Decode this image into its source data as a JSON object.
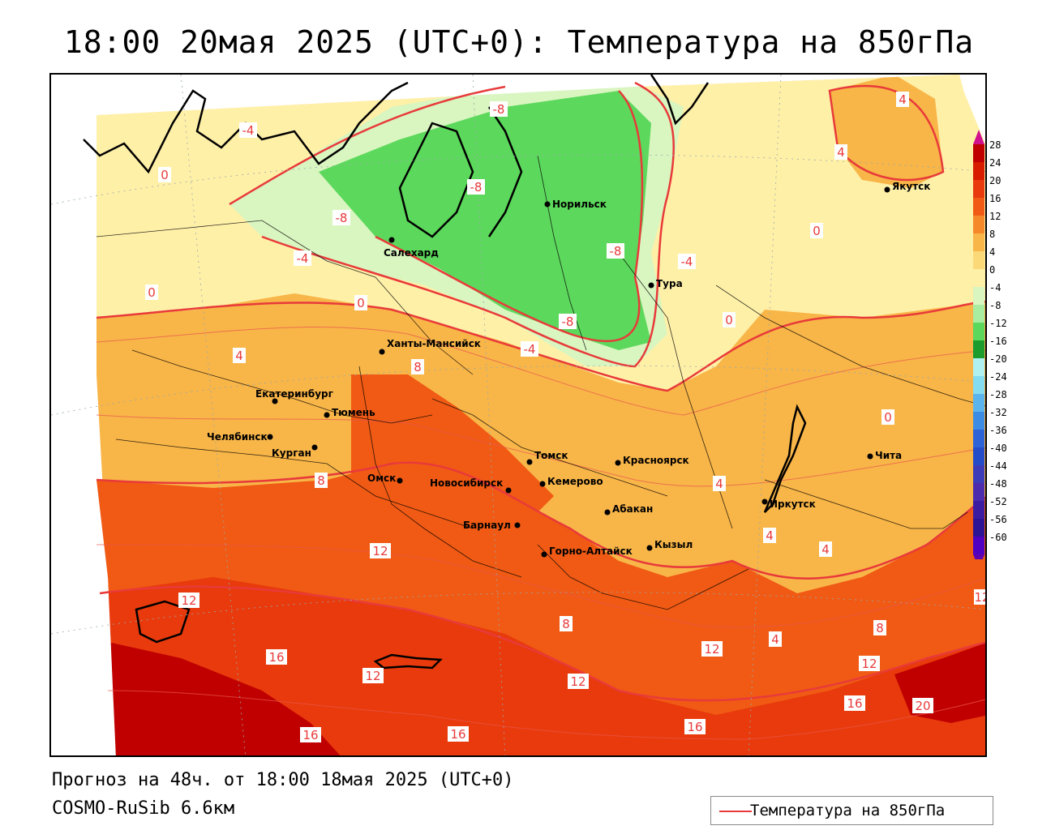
{
  "title": "18:00 20мая 2025 (UTC+0): Температура на 850гПа",
  "footer": {
    "forecast": "Прогноз на 48ч. от 18:00 18мая 2025 (UTC+0)",
    "model": "COSMO-RuSib 6.6км"
  },
  "legend": {
    "label": "Температура на 850гПа",
    "line_color": "#e83a3a"
  },
  "scale": {
    "values": [
      "28",
      "24",
      "20",
      "16",
      "12",
      "8",
      "4",
      "0",
      "-4",
      "-8",
      "-12",
      "-16",
      "-20",
      "-24",
      "-28",
      "-32",
      "-36",
      "-40",
      "-44",
      "-48",
      "-52",
      "-56",
      "-60"
    ],
    "colors": [
      "#c00000",
      "#d81c00",
      "#e83a0c",
      "#f05a14",
      "#f5892a",
      "#f8b548",
      "#fbd978",
      "#fff0a8",
      "#d9f5c0",
      "#a8eda0",
      "#5cd85c",
      "#1c9c2c",
      "#b0f0f0",
      "#84dcf0",
      "#5cb4ec",
      "#3c8ce4",
      "#2c64d8",
      "#244cc8",
      "#3c3cb8",
      "#4c2cac",
      "#3c1ca0",
      "#2c1494",
      "#5000c0"
    ]
  },
  "cities": [
    {
      "name": "Норильск"
    },
    {
      "name": "Якутск"
    },
    {
      "name": "Салехард"
    },
    {
      "name": "Тура"
    },
    {
      "name": "Ханты-Мансийск"
    },
    {
      "name": "Екатеринбург"
    },
    {
      "name": "Тюмень"
    },
    {
      "name": "Челябинск"
    },
    {
      "name": "Курган"
    },
    {
      "name": "Омск"
    },
    {
      "name": "Новосибирск"
    },
    {
      "name": "Томск"
    },
    {
      "name": "Кемерово"
    },
    {
      "name": "Красноярск"
    },
    {
      "name": "Абакан"
    },
    {
      "name": "Барнаул"
    },
    {
      "name": "Горно-Алтайск"
    },
    {
      "name": "Кызыл"
    },
    {
      "name": "Иркутск"
    },
    {
      "name": "Чита"
    }
  ],
  "isolines": [
    "-8",
    "-4",
    "0",
    "4",
    "8",
    "12",
    "16",
    "20"
  ]
}
